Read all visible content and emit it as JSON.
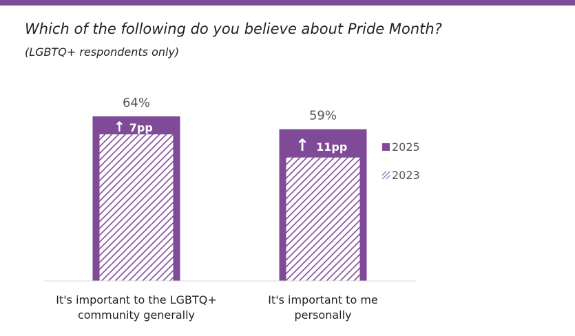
{
  "header": {
    "title": "Which of the following do you believe about Pride Month?",
    "subtitle": "(LGBTQ+ respondents only)"
  },
  "colors": {
    "accent": "#7F4A97",
    "hatch_bg": "#FFFFFF"
  },
  "chart_data": {
    "type": "bar",
    "title": "Which of the following do you believe about Pride Month?",
    "subtitle": "(LGBTQ+ respondents only)",
    "categories": [
      [
        "It's important to the LGBTQ+",
        "community generally"
      ],
      [
        "It's important to me",
        "personally"
      ]
    ],
    "series": [
      {
        "name": "2025",
        "values": [
          64,
          59
        ],
        "value_labels": [
          "64%",
          "59%"
        ],
        "pattern": "solid"
      },
      {
        "name": "2023",
        "values": [
          57,
          48
        ],
        "pattern": "hatched"
      }
    ],
    "annotations": [
      {
        "category_index": 0,
        "arrow": "↑",
        "text": "7pp"
      },
      {
        "category_index": 1,
        "arrow": "↑",
        "text": "11pp"
      }
    ],
    "ylim": [
      0,
      100
    ],
    "grid": false,
    "legend": {
      "position": "right",
      "entries": [
        "2025",
        "2023"
      ]
    }
  }
}
